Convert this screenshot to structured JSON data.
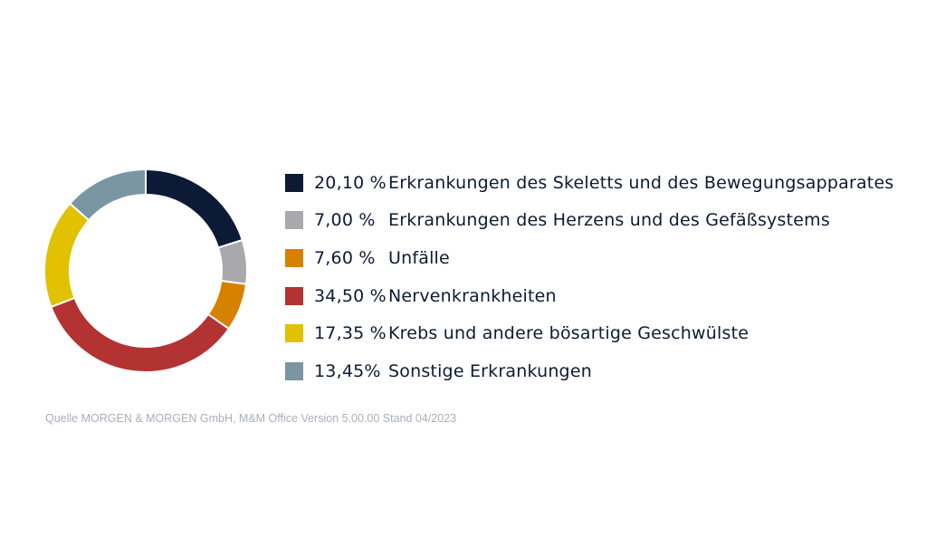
{
  "chart_data": {
    "type": "pie",
    "categories": [
      "Erkrankungen des Skeletts und des Bewegungsapparates",
      "Erkrankungen des Herzens und des Gefäßsystems",
      "Unfälle",
      "Nervenkrankheiten",
      "Krebs und andere bösartige Geschwülste",
      "Sonstige Erkrankungen"
    ],
    "values": [
      20.1,
      7.0,
      7.6,
      34.5,
      17.35,
      13.45
    ],
    "value_labels": [
      "20,10 %",
      "7,00 %",
      "7,60 %",
      "34,50 %",
      "17,35 %",
      "13,45%"
    ],
    "colors": [
      "#0c1a36",
      "#a9a9ad",
      "#d68200",
      "#b33333",
      "#e2c100",
      "#7a96a3"
    ],
    "donut": true,
    "legend_position": "right"
  },
  "source": "Quelle MORGEN & MORGEN GmbH, M&M Office Version 5.00.00 Stand 04/2023"
}
